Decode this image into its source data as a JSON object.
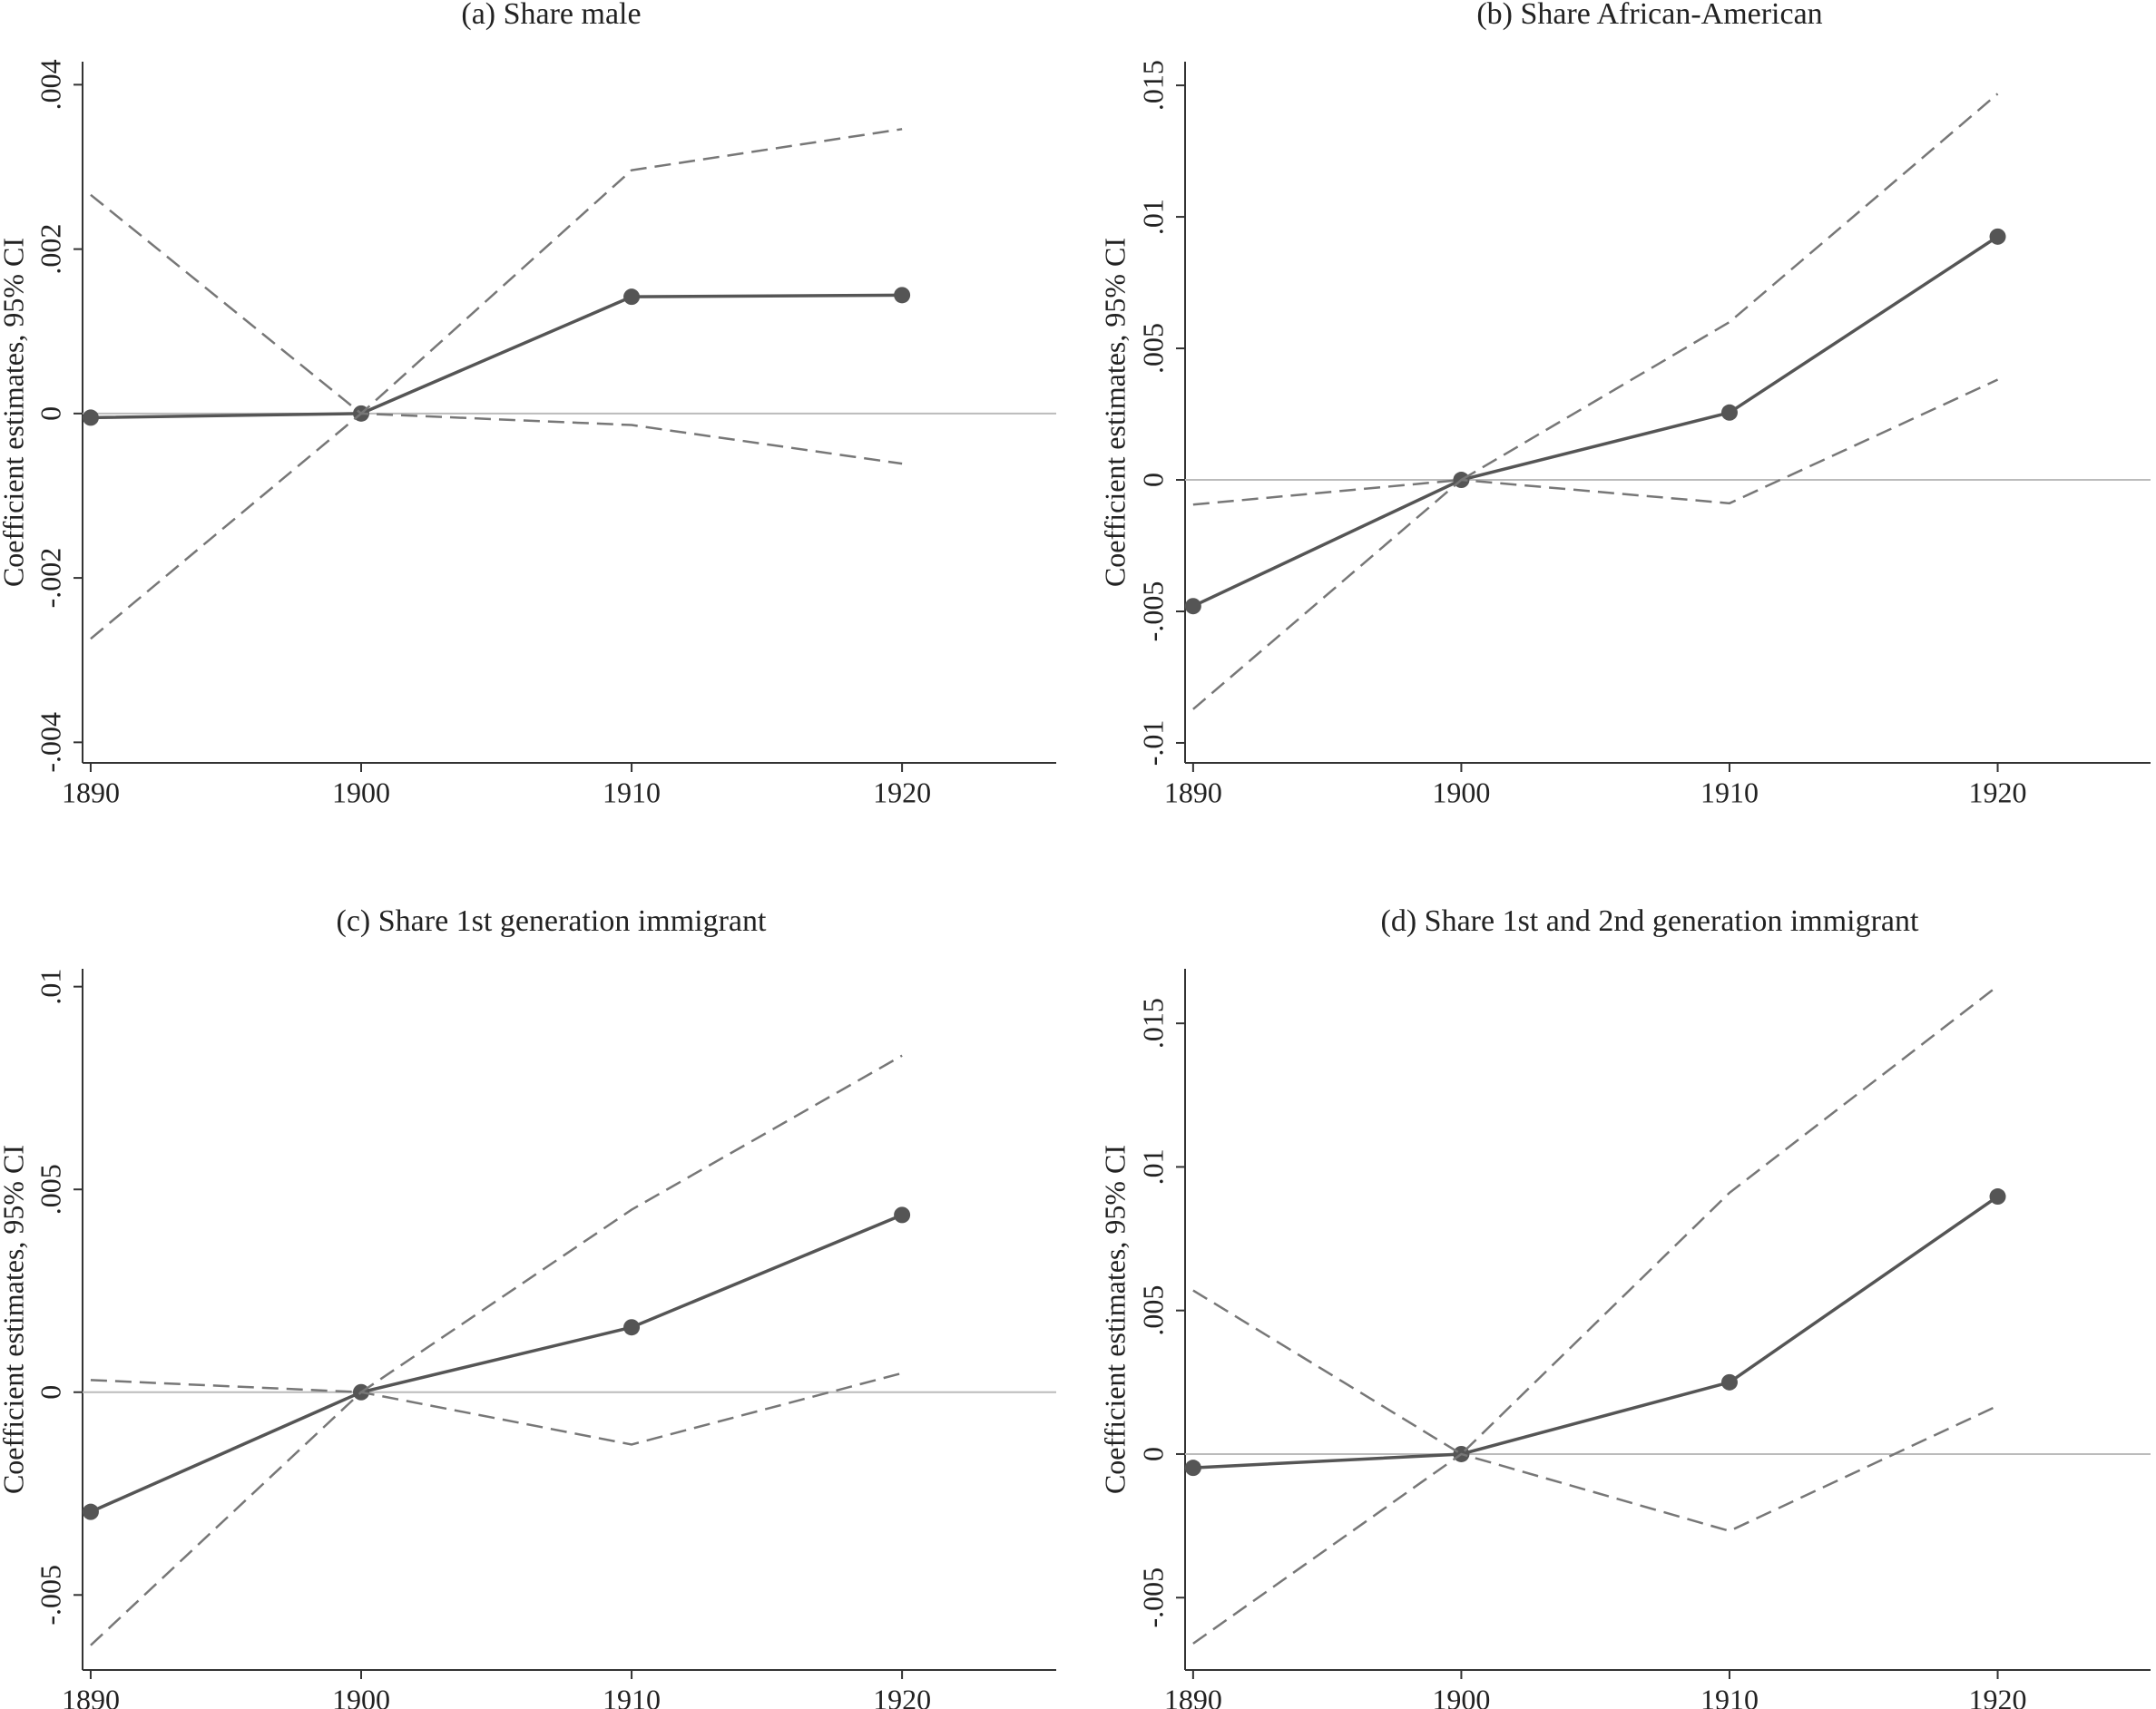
{
  "chart_data": [
    {
      "type": "line",
      "title": "(a) Share male",
      "y_label": "Coefficient estimates, 95% CI",
      "x": [
        1890,
        1900,
        1910,
        1920
      ],
      "xlim": [
        1889.7,
        1925.7
      ],
      "xticks": [
        1890,
        1900,
        1910,
        1920
      ],
      "ylim": [
        -0.00425,
        0.00428
      ],
      "yticks": [
        {
          "value": -0.004,
          "label": "-.004"
        },
        {
          "value": -0.002,
          "label": "-.002"
        },
        0,
        {
          "value": 0.002,
          "label": ".002"
        },
        {
          "value": 0.004,
          "label": ".004"
        }
      ],
      "yline": 0,
      "series": [
        {
          "style": "solid",
          "markers": true,
          "color": "#555555",
          "values": [
            -5e-05,
            0,
            0.00142,
            0.00144
          ]
        },
        {
          "style": "dashed",
          "markers": false,
          "color": "#777777",
          "values": [
            0.00266,
            0,
            0.00296,
            0.00346
          ]
        },
        {
          "style": "dashed",
          "markers": false,
          "color": "#777777",
          "values": [
            -0.00274,
            0,
            -0.00014,
            -0.00061
          ]
        }
      ]
    },
    {
      "type": "line",
      "title": "(b) Share African-American",
      "y_label": "Coefficient estimates, 95% CI",
      "x": [
        1890,
        1900,
        1910,
        1920
      ],
      "xlim": [
        1889.7,
        1925.7
      ],
      "xticks": [
        1890,
        1900,
        1910,
        1920
      ],
      "ylim": [
        -0.01076,
        0.0159
      ],
      "yticks": [
        {
          "value": -0.01,
          "label": "-.01"
        },
        {
          "value": -0.005,
          "label": "-.005"
        },
        0,
        {
          "value": 0.005,
          "label": ".005"
        },
        {
          "value": 0.01,
          "label": ".01"
        },
        {
          "value": 0.015,
          "label": ".015"
        }
      ],
      "yline": 0,
      "series": [
        {
          "style": "solid",
          "markers": true,
          "color": "#555555",
          "values": [
            -0.0048,
            0,
            0.00256,
            0.00925
          ]
        },
        {
          "style": "dashed",
          "markers": false,
          "color": "#777777",
          "values": [
            -0.00094,
            0,
            0.006,
            0.01468
          ]
        },
        {
          "style": "dashed",
          "markers": false,
          "color": "#777777",
          "values": [
            -0.00872,
            0,
            -0.00089,
            0.00381
          ]
        }
      ]
    },
    {
      "type": "line",
      "title": "(c) Share 1st generation immigrant",
      "y_label": "Coefficient estimates, 95% CI",
      "x": [
        1890,
        1900,
        1910,
        1920
      ],
      "xlim": [
        1889.7,
        1925.7
      ],
      "xticks": [
        1890,
        1900,
        1910,
        1920
      ],
      "ylim": [
        -0.00685,
        0.01044
      ],
      "yticks": [
        {
          "value": -0.005,
          "label": "-.005"
        },
        0,
        {
          "value": 0.005,
          "label": ".005"
        },
        {
          "value": 0.01,
          "label": ".01"
        }
      ],
      "yline": 0,
      "series": [
        {
          "style": "solid",
          "markers": true,
          "color": "#555555",
          "values": [
            -0.00295,
            0,
            0.0016,
            0.00437
          ]
        },
        {
          "style": "dashed",
          "markers": false,
          "color": "#777777",
          "values": [
            0.0003,
            0,
            0.0045,
            0.0083
          ]
        },
        {
          "style": "dashed",
          "markers": false,
          "color": "#777777",
          "values": [
            -0.00624,
            0,
            -0.00129,
            0.00047
          ]
        }
      ]
    },
    {
      "type": "line",
      "title": "(d) Share 1st and 2nd generation immigrant",
      "y_label": "Coefficient estimates, 95% CI",
      "x": [
        1890,
        1900,
        1910,
        1920
      ],
      "xlim": [
        1889.7,
        1925.7
      ],
      "xticks": [
        1890,
        1900,
        1910,
        1920
      ],
      "ylim": [
        -0.00752,
        0.0169
      ],
      "yticks": [
        {
          "value": -0.005,
          "label": "-.005"
        },
        0,
        {
          "value": 0.005,
          "label": ".005"
        },
        {
          "value": 0.01,
          "label": ".01"
        },
        {
          "value": 0.015,
          "label": ".015"
        }
      ],
      "yline": 0,
      "series": [
        {
          "style": "solid",
          "markers": true,
          "color": "#555555",
          "values": [
            -0.00048,
            0,
            0.0025,
            0.00897
          ]
        },
        {
          "style": "dashed",
          "markers": false,
          "color": "#777777",
          "values": [
            0.0057,
            0,
            0.0091,
            0.0163
          ]
        },
        {
          "style": "dashed",
          "markers": false,
          "color": "#777777",
          "values": [
            -0.0066,
            0,
            -0.00268,
            0.00168
          ]
        }
      ]
    }
  ]
}
